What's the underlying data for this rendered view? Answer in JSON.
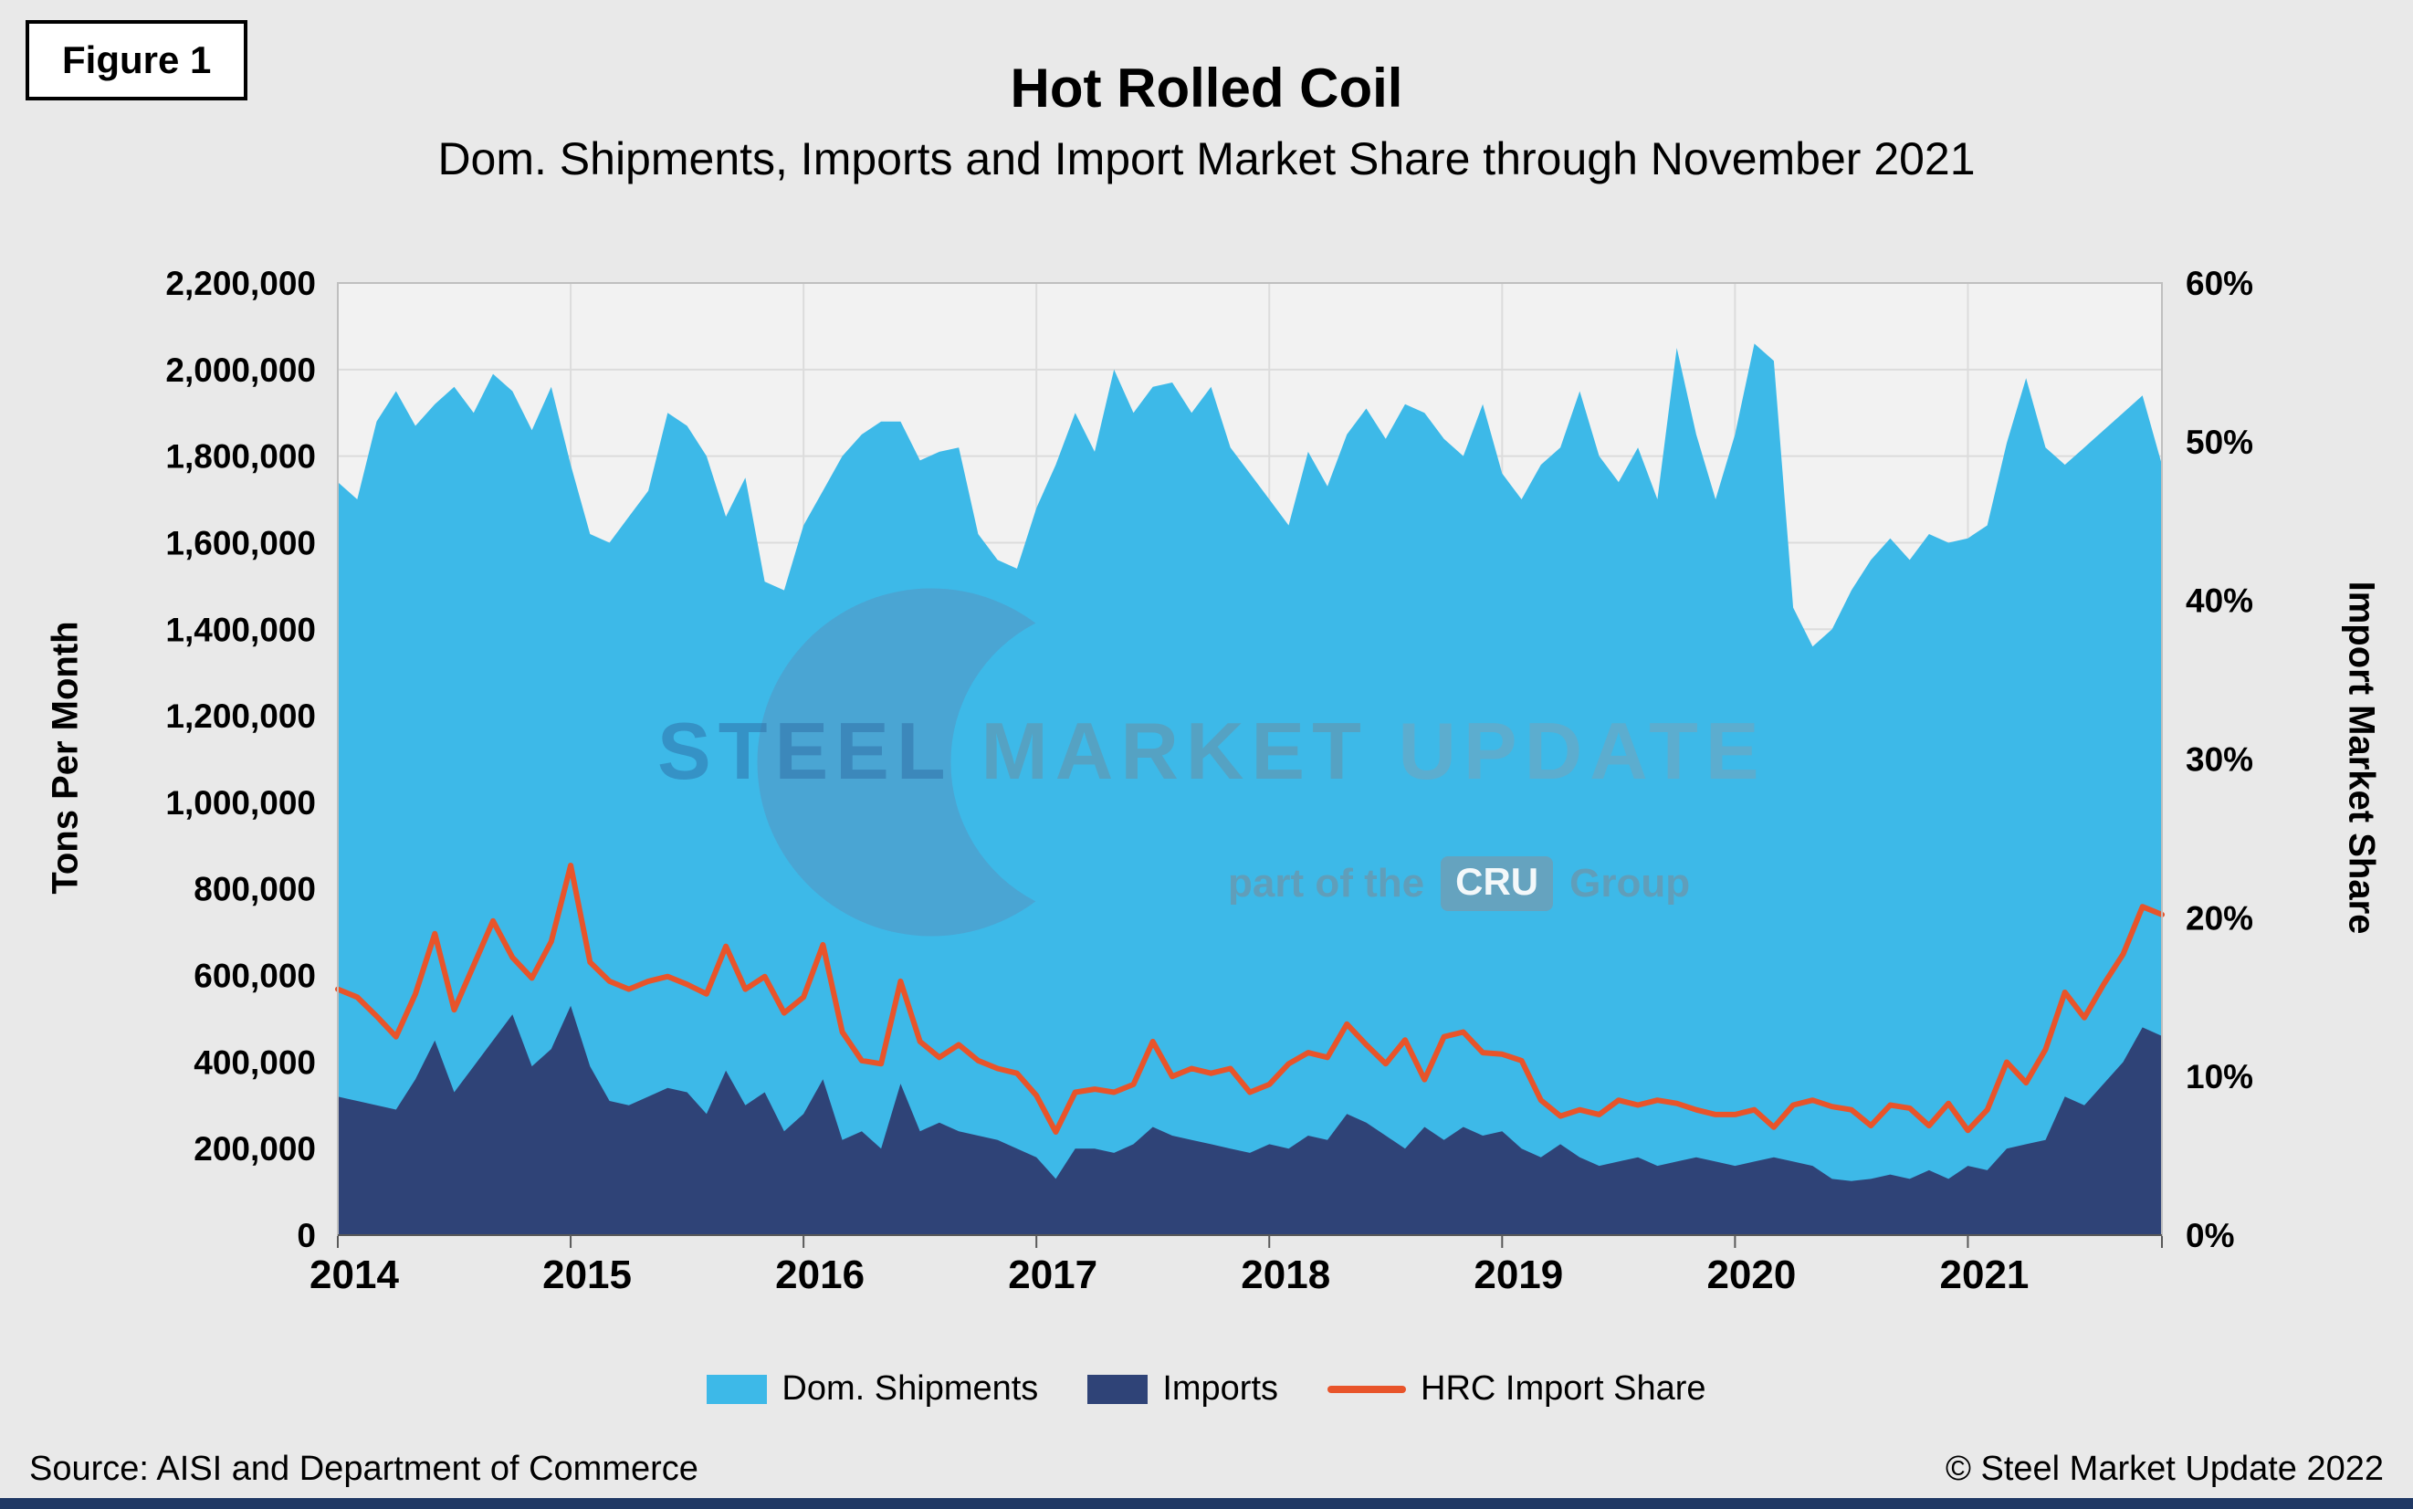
{
  "figure_label": "Figure 1",
  "title": "Hot Rolled Coil",
  "subtitle": "Dom. Shipments, Imports and Import Market Share through November 2021",
  "axes": {
    "left_title": "Tons Per Month",
    "right_title": "Import Market Share"
  },
  "watermark": {
    "word1": "STEEL",
    "word2": "MARKET",
    "word3": "UPDATE",
    "part_of": "part of the",
    "cru": "CRU",
    "group": "Group"
  },
  "footer": {
    "source": "Source: AISI and Department of Commerce",
    "copyright": "© Steel Market Update 2022"
  },
  "chart_data": {
    "type": "area",
    "title": "Hot Rolled Coil",
    "x_unit": "month",
    "x_start": "2014-01",
    "x_end": "2021-11",
    "x_year_labels": [
      "2014",
      "2015",
      "2016",
      "2017",
      "2018",
      "2019",
      "2020",
      "2021"
    ],
    "left_axis": {
      "label": "Tons Per Month",
      "min": 0,
      "max": 2200000,
      "step": 200000
    },
    "right_axis": {
      "label": "Import Market Share",
      "min": 0,
      "max": 60,
      "step": 10,
      "unit": "%"
    },
    "grid": true,
    "legend_position": "bottom",
    "colors": {
      "plot_bg": "#F2F2F2",
      "gridline": "#DCDCDC",
      "border": "#BFBFBF",
      "axis_line": "#595959"
    },
    "series": [
      {
        "name": "Dom. Shipments",
        "type": "area",
        "axis": "left",
        "color": "#3DB9E8",
        "values": [
          1740000,
          1700000,
          1880000,
          1950000,
          1870000,
          1920000,
          1960000,
          1900000,
          1990000,
          1950000,
          1860000,
          1960000,
          1780000,
          1620000,
          1600000,
          1660000,
          1720000,
          1900000,
          1870000,
          1800000,
          1660000,
          1750000,
          1510000,
          1490000,
          1640000,
          1720000,
          1800000,
          1850000,
          1880000,
          1880000,
          1790000,
          1810000,
          1820000,
          1620000,
          1560000,
          1540000,
          1680000,
          1780000,
          1900000,
          1810000,
          2000000,
          1900000,
          1960000,
          1970000,
          1900000,
          1960000,
          1820000,
          1760000,
          1700000,
          1640000,
          1810000,
          1730000,
          1850000,
          1910000,
          1840000,
          1920000,
          1900000,
          1840000,
          1800000,
          1920000,
          1760000,
          1700000,
          1780000,
          1820000,
          1950000,
          1800000,
          1740000,
          1820000,
          1700000,
          2050000,
          1850000,
          1700000,
          1850000,
          2060000,
          2020000,
          1450000,
          1360000,
          1400000,
          1490000,
          1560000,
          1610000,
          1560000,
          1620000,
          1600000,
          1610000,
          1640000,
          1830000,
          1980000,
          1820000,
          1780000,
          1820000,
          1860000,
          1900000,
          1940000,
          1780000
        ]
      },
      {
        "name": "Imports",
        "type": "area",
        "axis": "left",
        "color": "#2F4377",
        "values": [
          320000,
          310000,
          300000,
          290000,
          360000,
          450000,
          330000,
          390000,
          450000,
          510000,
          390000,
          430000,
          530000,
          390000,
          310000,
          300000,
          320000,
          340000,
          330000,
          280000,
          380000,
          300000,
          330000,
          240000,
          280000,
          360000,
          220000,
          240000,
          200000,
          350000,
          240000,
          260000,
          240000,
          230000,
          220000,
          200000,
          180000,
          130000,
          200000,
          200000,
          190000,
          210000,
          250000,
          230000,
          220000,
          210000,
          200000,
          190000,
          210000,
          200000,
          230000,
          220000,
          280000,
          260000,
          230000,
          200000,
          250000,
          220000,
          250000,
          230000,
          240000,
          200000,
          180000,
          210000,
          180000,
          160000,
          170000,
          180000,
          160000,
          170000,
          180000,
          170000,
          160000,
          170000,
          180000,
          170000,
          160000,
          130000,
          125000,
          130000,
          140000,
          130000,
          150000,
          130000,
          160000,
          150000,
          200000,
          210000,
          220000,
          320000,
          300000,
          350000,
          400000,
          480000,
          460000
        ]
      },
      {
        "name": "HRC Import Share",
        "type": "line",
        "axis": "right",
        "color": "#E8542A",
        "values": [
          15.5,
          15.0,
          13.8,
          12.5,
          15.2,
          19.0,
          14.2,
          17.0,
          19.8,
          17.5,
          16.2,
          18.5,
          23.3,
          17.2,
          16.0,
          15.5,
          16.0,
          16.3,
          15.8,
          15.2,
          18.2,
          15.5,
          16.3,
          14.0,
          15.0,
          18.3,
          12.8,
          11.0,
          10.8,
          16.0,
          12.2,
          11.2,
          12.0,
          11.0,
          10.5,
          10.2,
          8.8,
          6.5,
          9.0,
          9.2,
          9.0,
          9.5,
          12.2,
          10.0,
          10.5,
          10.2,
          10.5,
          9.0,
          9.5,
          10.8,
          11.5,
          11.2,
          13.3,
          12.0,
          10.8,
          12.3,
          9.8,
          12.5,
          12.8,
          11.5,
          11.4,
          11.0,
          8.5,
          7.5,
          7.9,
          7.6,
          8.5,
          8.2,
          8.5,
          8.3,
          7.9,
          7.6,
          7.6,
          7.9,
          6.8,
          8.2,
          8.5,
          8.1,
          7.9,
          6.9,
          8.2,
          8.0,
          6.9,
          8.3,
          6.6,
          7.9,
          10.9,
          9.6,
          11.7,
          15.3,
          13.7,
          15.8,
          17.7,
          20.7,
          20.2
        ]
      }
    ]
  }
}
